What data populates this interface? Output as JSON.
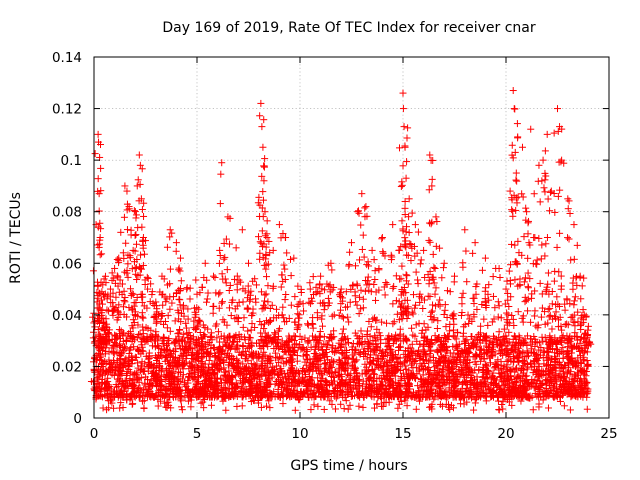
{
  "chart_data": {
    "type": "scatter",
    "title": "Day 169 of 2019, Rate Of TEC Index for receiver cnar",
    "xlabel": "GPS time / hours",
    "ylabel": "ROTI / TECUs",
    "xlim": [
      0,
      25
    ],
    "ylim": [
      0,
      0.14
    ],
    "x_ticks": [
      0,
      5,
      10,
      15,
      20,
      25
    ],
    "x_tick_labels": [
      "0",
      "5",
      "10",
      "15",
      "20",
      "25"
    ],
    "y_ticks": [
      0,
      0.02,
      0.04,
      0.06,
      0.08,
      0.1,
      0.12,
      0.14
    ],
    "y_tick_labels": [
      "0",
      "0.02",
      "0.04",
      "0.06",
      "0.08",
      "0.1",
      "0.12",
      "0.14"
    ],
    "grid": true,
    "marker": "plus",
    "color": "#ff0000",
    "series": [
      {
        "values_note": "",
        "points": [
          [
            0.05,
            0.012
          ],
          [
            0.1,
            0.075
          ],
          [
            0.15,
            0.045
          ],
          [
            0.2,
            0.11
          ],
          [
            0.22,
            0.107
          ],
          [
            0.25,
            0.087
          ],
          [
            0.3,
            0.07
          ],
          [
            0.35,
            0.03
          ],
          [
            0.5,
            0.047
          ],
          [
            0.6,
            0.035
          ],
          [
            0.8,
            0.05
          ],
          [
            1.0,
            0.058
          ],
          [
            1.2,
            0.062
          ],
          [
            1.3,
            0.072
          ],
          [
            1.5,
            0.09
          ],
          [
            1.6,
            0.088
          ],
          [
            1.7,
            0.082
          ],
          [
            1.8,
            0.071
          ],
          [
            1.9,
            0.065
          ],
          [
            2.0,
            0.058
          ],
          [
            2.1,
            0.09
          ],
          [
            2.2,
            0.102
          ],
          [
            2.25,
            0.098
          ],
          [
            2.3,
            0.085
          ],
          [
            2.4,
            0.07
          ],
          [
            2.6,
            0.05
          ],
          [
            3.0,
            0.045
          ],
          [
            3.3,
            0.055
          ],
          [
            3.7,
            0.073
          ],
          [
            4.0,
            0.068
          ],
          [
            4.2,
            0.062
          ],
          [
            4.5,
            0.05
          ],
          [
            5.0,
            0.048
          ],
          [
            5.4,
            0.06
          ],
          [
            5.8,
            0.055
          ],
          [
            6.1,
            0.065
          ],
          [
            6.2,
            0.099
          ],
          [
            6.5,
            0.078
          ],
          [
            6.9,
            0.066
          ],
          [
            7.2,
            0.073
          ],
          [
            7.5,
            0.06
          ],
          [
            7.8,
            0.054
          ],
          [
            8.1,
            0.122
          ],
          [
            8.15,
            0.113
          ],
          [
            8.2,
            0.105
          ],
          [
            8.25,
            0.092
          ],
          [
            8.3,
            0.08
          ],
          [
            8.4,
            0.07
          ],
          [
            8.7,
            0.065
          ],
          [
            9.0,
            0.075
          ],
          [
            9.3,
            0.07
          ],
          [
            9.7,
            0.062
          ],
          [
            10.0,
            0.045
          ],
          [
            10.5,
            0.05
          ],
          [
            11.0,
            0.055
          ],
          [
            11.5,
            0.06
          ],
          [
            12.0,
            0.05
          ],
          [
            12.5,
            0.068
          ],
          [
            12.8,
            0.08
          ],
          [
            13.0,
            0.087
          ],
          [
            13.2,
            0.082
          ],
          [
            13.5,
            0.065
          ],
          [
            14.0,
            0.07
          ],
          [
            14.5,
            0.075
          ],
          [
            14.8,
            0.065
          ],
          [
            15.0,
            0.126
          ],
          [
            15.02,
            0.12
          ],
          [
            15.05,
            0.113
          ],
          [
            15.1,
            0.105
          ],
          [
            15.15,
            0.093
          ],
          [
            15.3,
            0.085
          ],
          [
            15.6,
            0.075
          ],
          [
            16.0,
            0.065
          ],
          [
            16.3,
            0.102
          ],
          [
            16.4,
            0.09
          ],
          [
            16.6,
            0.078
          ],
          [
            17.0,
            0.06
          ],
          [
            17.5,
            0.055
          ],
          [
            18.0,
            0.073
          ],
          [
            18.5,
            0.068
          ],
          [
            19.0,
            0.062
          ],
          [
            19.5,
            0.058
          ],
          [
            20.0,
            0.05
          ],
          [
            20.2,
            0.088
          ],
          [
            20.35,
            0.127
          ],
          [
            20.4,
            0.12
          ],
          [
            20.45,
            0.103
          ],
          [
            20.5,
            0.095
          ],
          [
            20.8,
            0.105
          ],
          [
            21.0,
            0.08
          ],
          [
            21.2,
            0.112
          ],
          [
            21.4,
            0.07
          ],
          [
            21.6,
            0.098
          ],
          [
            21.8,
            0.1
          ],
          [
            22.0,
            0.11
          ],
          [
            22.2,
            0.088
          ],
          [
            22.5,
            0.12
          ],
          [
            22.6,
            0.113
          ],
          [
            22.7,
            0.1
          ],
          [
            23.0,
            0.085
          ],
          [
            23.3,
            0.075
          ],
          [
            23.6,
            0.055
          ],
          [
            23.8,
            0.04
          ],
          [
            24.0,
            0.028
          ]
        ]
      }
    ],
    "dense_band": {
      "x_start": 0,
      "x_end": 24,
      "y_lower_typical": 0.008,
      "y_upper_typical": 0.04,
      "y_min": 0.003
    }
  }
}
